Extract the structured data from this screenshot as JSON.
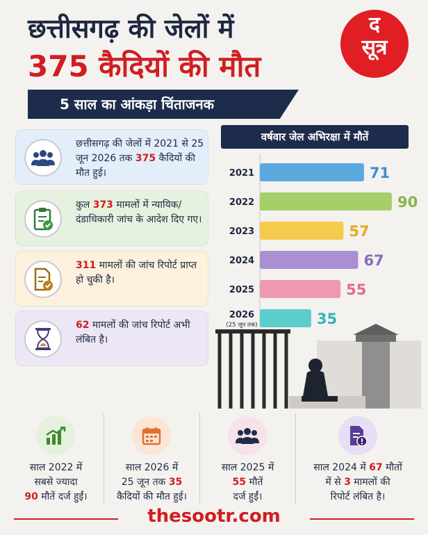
{
  "header": {
    "title_line1": "छत्तीसगढ़ की जेलों में",
    "title_line2": "375 कैदियों की मौत",
    "subtitle": "5 साल का आंकड़ा चिंताजनक",
    "logo_top": "द",
    "logo_bottom": "सूत्र"
  },
  "cards": [
    {
      "pre": "छत्तीसगढ़ की जेलों में 2021 से 25 जून 2026 तक ",
      "num": "375",
      "post": " कैदियों की मौत हुई।",
      "bg": "#e3eefa"
    },
    {
      "pre": "कुल ",
      "num": "373",
      "post": " मामलों में न्यायिक/दंडाधिकारी जांच के आदेश दिए गए।",
      "bg": "#e6f2df"
    },
    {
      "pre": "",
      "num": "311",
      "post": " मामलों की जांच रिपोर्ट प्राप्त हो चुकी है।",
      "bg": "#fbf1dd"
    },
    {
      "pre": "",
      "num": "62",
      "post": " मामलों की जांच रिपोर्ट अभी लंबित है।",
      "bg": "#ede6f4"
    }
  ],
  "chart_data": {
    "type": "bar",
    "orientation": "horizontal",
    "title": "वर्षवार जेल अभिरक्षा में मौतें",
    "categories": [
      "2021",
      "2022",
      "2023",
      "2024",
      "2025",
      "2026"
    ],
    "category_notes": [
      "",
      "",
      "",
      "",
      "",
      "(25 जून तक)"
    ],
    "values": [
      71,
      90,
      57,
      67,
      55,
      35
    ],
    "colors": [
      "#5ba8df",
      "#a6cf6b",
      "#f6ca4b",
      "#ab8fd3",
      "#ee99ad",
      "#5ccccc"
    ],
    "label_colors": [
      "#3d8fd0",
      "#86b648",
      "#e3ab1f",
      "#8a6cbf",
      "#e06b8a",
      "#2fb5b5"
    ],
    "xlim": [
      0,
      90
    ],
    "grid": false
  },
  "stats": [
    {
      "lines": [
        "साल 2022 में",
        "सबसे ज्यादा"
      ],
      "num": "90",
      "last": " मौतें दर्ज हुईं।",
      "icon": "growth-chart-icon",
      "bg": "#e5f1dc",
      "fg": "#3d8a2f"
    },
    {
      "lines": [
        "साल 2026 में"
      ],
      "mid_pre": "25 जून तक ",
      "num": "35",
      "last": "कैदियों की मौत हुई।",
      "icon": "calendar-icon",
      "bg": "#fbe6d6",
      "fg": "#e0702a"
    },
    {
      "lines": [
        "साल 2025 में"
      ],
      "num": "55",
      "last_inline": " मौतें",
      "last": "दर्ज हुईं।",
      "icon": "people-group-icon",
      "bg": "#f8e1e8",
      "fg": "#1e2c4c"
    },
    {
      "line1_pre": "साल 2024 में ",
      "line1_num": "67",
      "line1_post": " मौतों",
      "line2_pre": "में से ",
      "line2_num": "3",
      "line2_post": " मामलों की",
      "last": "रिपोर्ट लंबित है।",
      "icon": "document-alert-icon",
      "bg": "#e6def2",
      "fg": "#5a3d94"
    }
  ],
  "footer": {
    "site": "thesootr.com"
  }
}
